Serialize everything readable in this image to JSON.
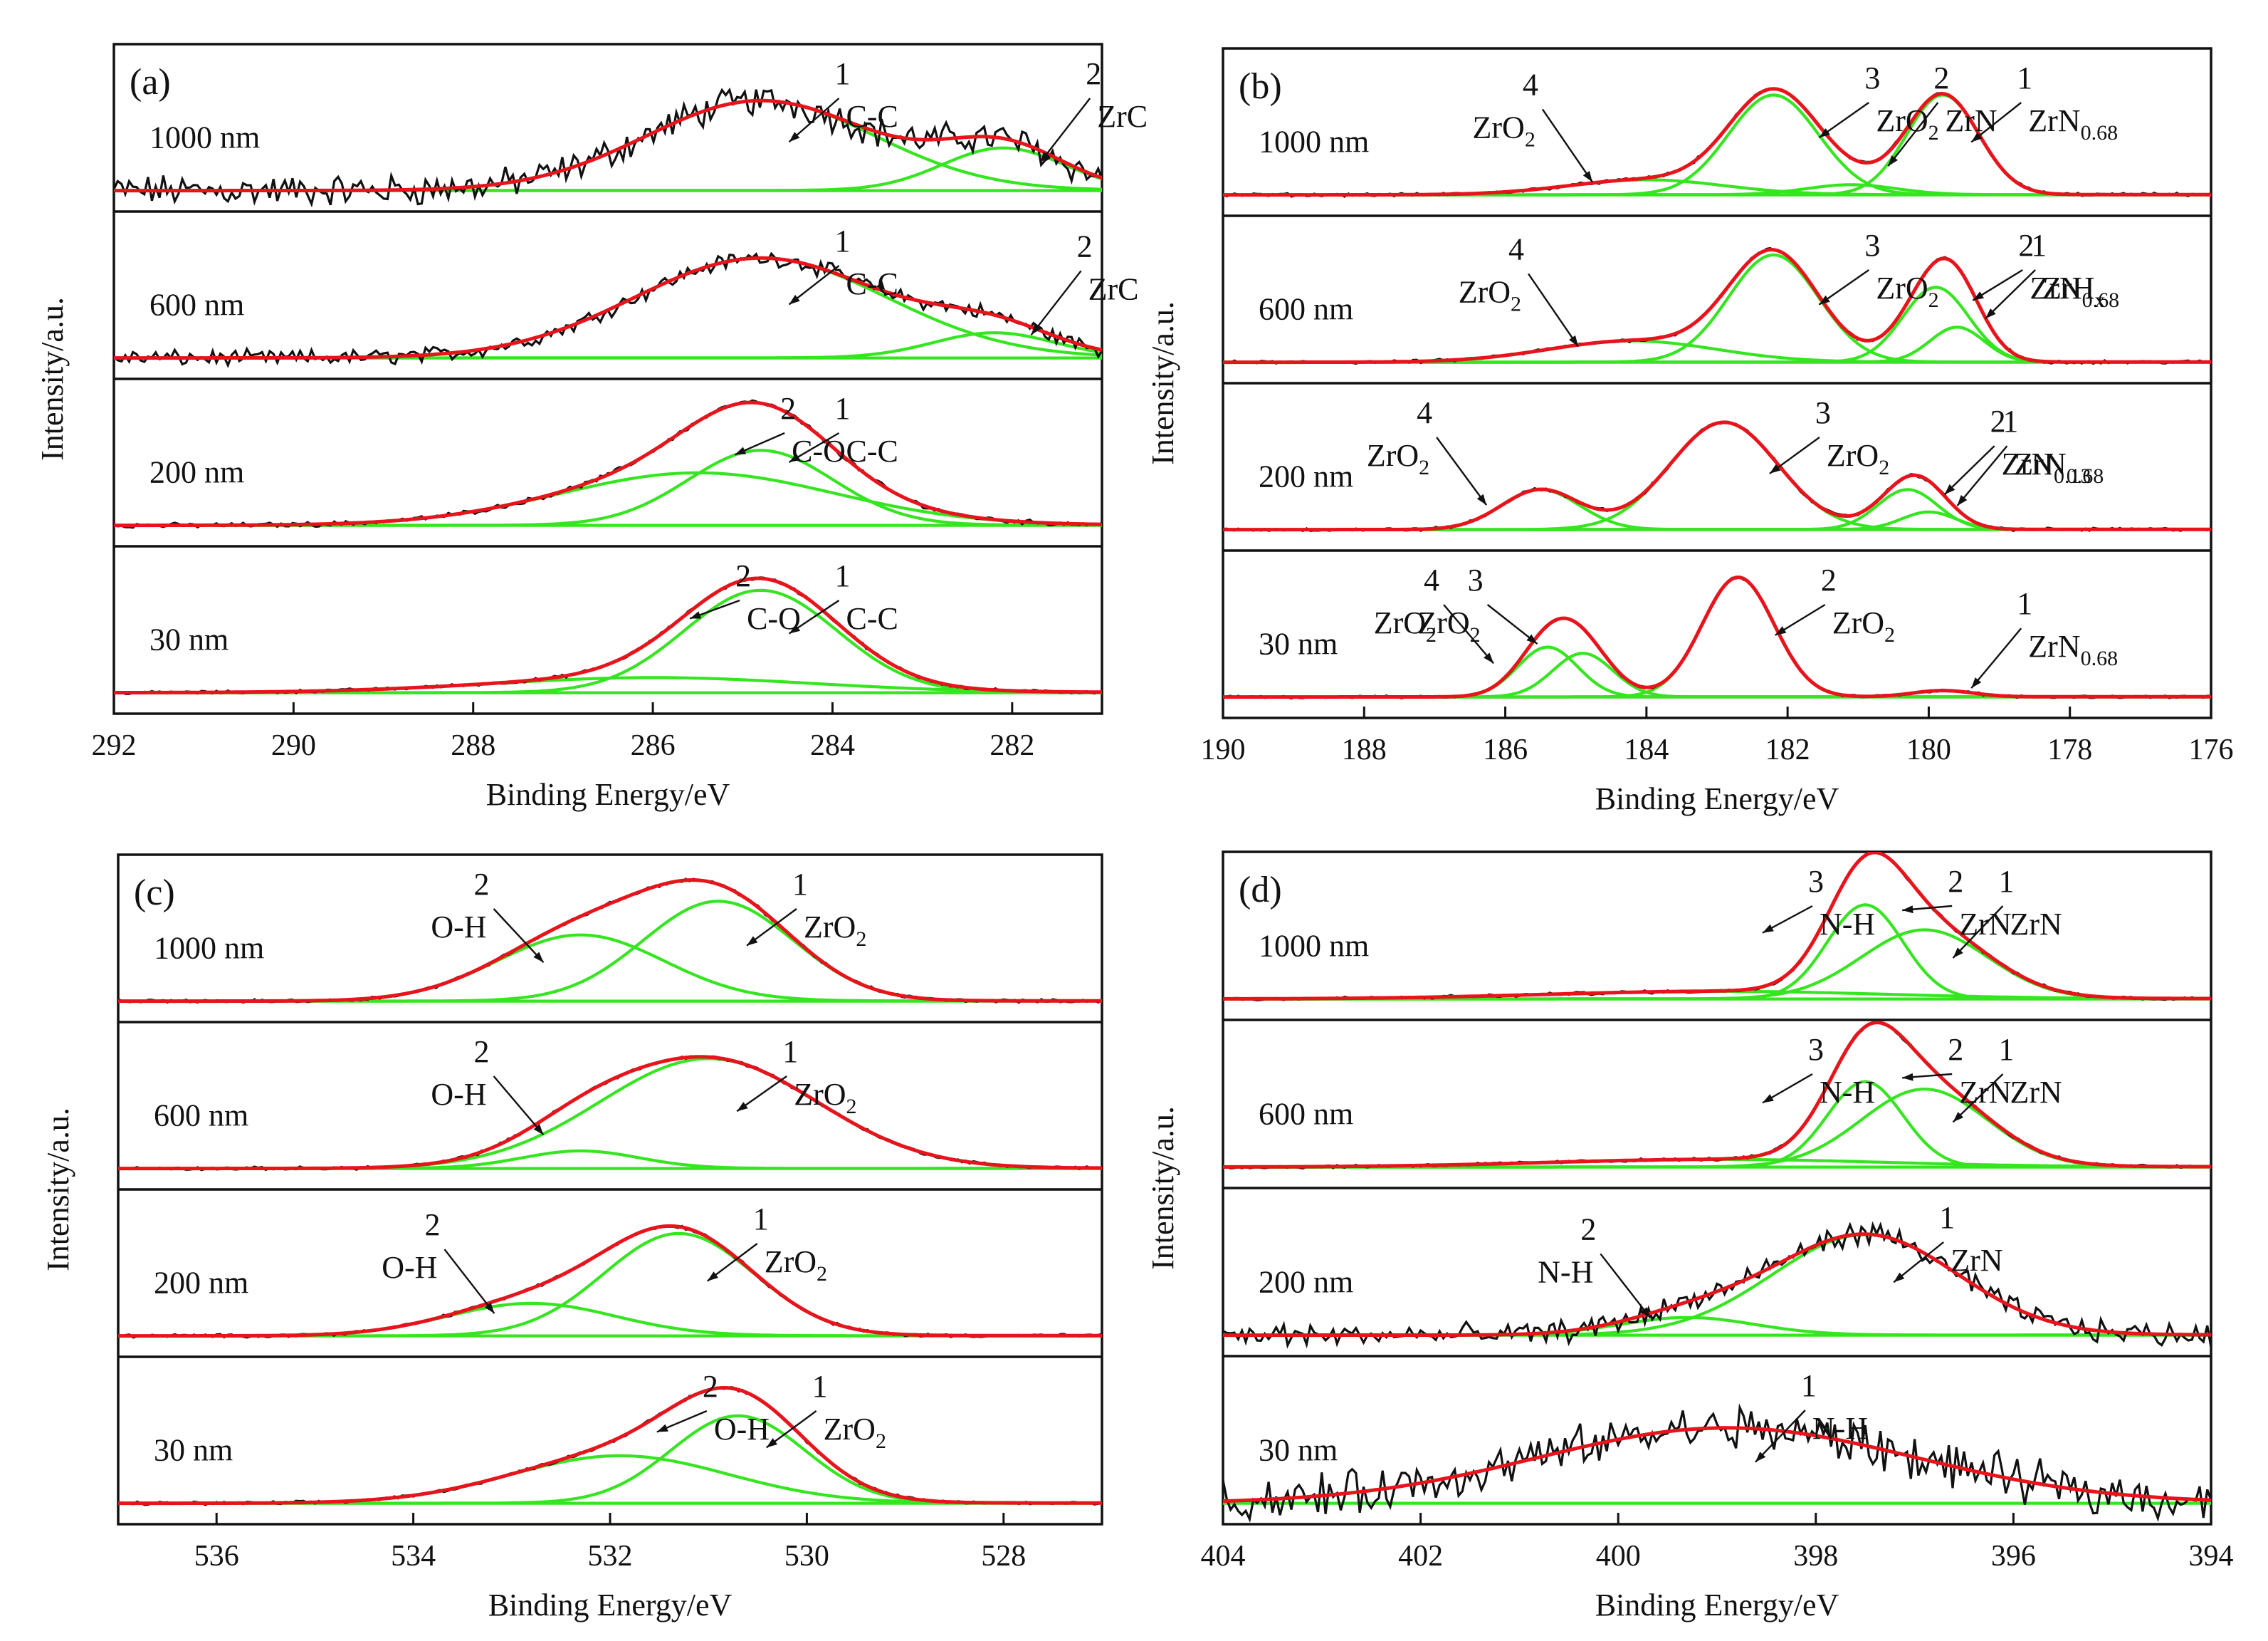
{
  "figure": {
    "ylabel": "Intensity/a.u.",
    "xlabel": "Binding Energy/eV"
  },
  "chart_data": [
    {
      "type": "line",
      "panel": "(a)",
      "x_range": [
        292,
        281
      ],
      "x_ticks": [
        "292",
        "290",
        "288",
        "286",
        "284",
        "282"
      ],
      "x_tick_values": [
        292,
        290,
        288,
        286,
        284,
        282
      ],
      "xlabel": "Binding Energy/eV",
      "ylabel": "Intensity/a.u.",
      "subplots": [
        {
          "thickness": "1000 nm",
          "noise": 0.1,
          "peaks": [
            {
              "index": "1",
              "name": "C-C",
              "center": 284.8,
              "amplitude": 0.72,
              "fwhm": 3.0
            },
            {
              "index": "2",
              "name": "ZrC",
              "center": 282.1,
              "amplitude": 0.34,
              "fwhm": 1.6
            }
          ]
        },
        {
          "thickness": "600 nm",
          "noise": 0.05,
          "peaks": [
            {
              "index": "1",
              "name": "C-C",
              "center": 284.8,
              "amplitude": 0.8,
              "fwhm": 3.3
            },
            {
              "index": "2",
              "name": "ZrC",
              "center": 282.2,
              "amplitude": 0.2,
              "fwhm": 1.6
            }
          ]
        },
        {
          "thickness": "200 nm",
          "noise": 0.015,
          "peaks": [
            {
              "index": "1",
              "name": "C-C",
              "center": 284.8,
              "amplitude": 0.6,
              "fwhm": 1.9
            },
            {
              "index": "2",
              "name": "C-O",
              "center": 285.5,
              "amplitude": 0.42,
              "fwhm": 3.6
            }
          ]
        },
        {
          "thickness": "30 nm",
          "noise": 0.01,
          "peaks": [
            {
              "index": "1",
              "name": "C-C",
              "center": 284.8,
              "amplitude": 0.82,
              "fwhm": 2.0
            },
            {
              "index": "2",
              "name": "C-O",
              "center": 286.0,
              "amplitude": 0.12,
              "fwhm": 4.2
            }
          ]
        }
      ]
    },
    {
      "type": "line",
      "panel": "(b)",
      "x_range": [
        190,
        176
      ],
      "x_ticks": [
        "190",
        "188",
        "186",
        "184",
        "182",
        "180",
        "178",
        "176"
      ],
      "x_tick_values": [
        190,
        188,
        186,
        184,
        182,
        180,
        178,
        176
      ],
      "xlabel": "Binding Energy/eV",
      "ylabel": "Intensity/a.u.",
      "subplots": [
        {
          "thickness": "1000 nm",
          "noise": 0.01,
          "peaks": [
            {
              "index": "1",
              "name": "ZrN",
              "sub": "0.68",
              "center": 179.8,
              "amplitude": 0.8,
              "fwhm": 1.2
            },
            {
              "index": "2",
              "name": "ZrN",
              "sub": "",
              "center": 181.1,
              "amplitude": 0.08,
              "fwhm": 1.5
            },
            {
              "index": "3",
              "name": "ZrO",
              "sub": "2",
              "center": 182.2,
              "amplitude": 0.8,
              "fwhm": 1.5
            },
            {
              "index": "4",
              "name": "ZrO",
              "sub": "2",
              "center": 184.0,
              "amplitude": 0.12,
              "fwhm": 2.6
            }
          ]
        },
        {
          "thickness": "600 nm",
          "noise": 0.01,
          "peaks": [
            {
              "index": "1",
              "name": "ZrH",
              "sub": "x",
              "center": 179.6,
              "amplitude": 0.28,
              "fwhm": 0.9
            },
            {
              "index": "2",
              "name": "ZrN",
              "sub": "0.68",
              "center": 179.9,
              "amplitude": 0.6,
              "fwhm": 1.1
            },
            {
              "index": "3",
              "name": "ZrO",
              "sub": "2",
              "center": 182.2,
              "amplitude": 0.86,
              "fwhm": 1.5
            },
            {
              "index": "4",
              "name": "ZrO",
              "sub": "2",
              "center": 184.2,
              "amplitude": 0.17,
              "fwhm": 2.8
            }
          ]
        },
        {
          "thickness": "200 nm",
          "noise": 0.01,
          "peaks": [
            {
              "index": "1",
              "name": "ZrN",
              "sub": "0.68",
              "center": 180.0,
              "amplitude": 0.14,
              "fwhm": 0.9
            },
            {
              "index": "2",
              "name": "ZrN",
              "sub": "0.13",
              "center": 180.3,
              "amplitude": 0.32,
              "fwhm": 1.0
            },
            {
              "index": "3",
              "name": "ZrO",
              "sub": "2",
              "center": 182.9,
              "amplitude": 0.86,
              "fwhm": 1.8
            },
            {
              "index": "4",
              "name": "ZrO",
              "sub": "2",
              "center": 185.5,
              "amplitude": 0.32,
              "fwhm": 1.3
            }
          ]
        },
        {
          "thickness": "30 nm",
          "noise": 0.008,
          "peaks": [
            {
              "index": "1",
              "name": "ZrN",
              "sub": "0.68",
              "center": 179.8,
              "amplitude": 0.05,
              "fwhm": 1.0
            },
            {
              "index": "2",
              "name": "ZrO",
              "sub": "2",
              "center": 182.7,
              "amplitude": 0.96,
              "fwhm": 1.2
            },
            {
              "index": "3",
              "name": "ZrO",
              "sub": "2",
              "center": 184.9,
              "amplitude": 0.35,
              "fwhm": 1.0
            },
            {
              "index": "4",
              "name": "ZrO",
              "sub": "2",
              "center": 185.4,
              "amplitude": 0.4,
              "fwhm": 1.0
            }
          ]
        }
      ]
    },
    {
      "type": "line",
      "panel": "(c)",
      "x_range": [
        537,
        527
      ],
      "x_ticks": [
        "536",
        "534",
        "532",
        "530",
        "528"
      ],
      "x_tick_values": [
        536,
        534,
        532,
        530,
        528
      ],
      "xlabel": "Binding Energy/eV",
      "ylabel": "Intensity/a.u.",
      "subplots": [
        {
          "thickness": "1000 nm",
          "noise": 0.01,
          "peaks": [
            {
              "index": "1",
              "name": "ZrO",
              "sub": "2",
              "center": 530.9,
              "amplitude": 0.8,
              "fwhm": 1.8
            },
            {
              "index": "2",
              "name": "O-H",
              "sub": "",
              "center": 532.3,
              "amplitude": 0.53,
              "fwhm": 2.0
            }
          ]
        },
        {
          "thickness": "600 nm",
          "noise": 0.01,
          "peaks": [
            {
              "index": "1",
              "name": "ZrO",
              "sub": "2",
              "center": 531.0,
              "amplitude": 0.88,
              "fwhm": 2.6
            },
            {
              "index": "2",
              "name": "O-H",
              "sub": "",
              "center": 532.3,
              "amplitude": 0.14,
              "fwhm": 1.4
            }
          ]
        },
        {
          "thickness": "200 nm",
          "noise": 0.01,
          "peaks": [
            {
              "index": "1",
              "name": "ZrO",
              "sub": "2",
              "center": 531.3,
              "amplitude": 0.82,
              "fwhm": 1.8
            },
            {
              "index": "2",
              "name": "O-H",
              "sub": "",
              "center": 532.8,
              "amplitude": 0.26,
              "fwhm": 2.0
            }
          ]
        },
        {
          "thickness": "30 nm",
          "noise": 0.01,
          "peaks": [
            {
              "index": "1",
              "name": "ZrO",
              "sub": "2",
              "center": 530.7,
              "amplitude": 0.7,
              "fwhm": 1.6
            },
            {
              "index": "2",
              "name": "O-H",
              "sub": "",
              "center": 531.9,
              "amplitude": 0.38,
              "fwhm": 2.6
            }
          ]
        }
      ]
    },
    {
      "type": "line",
      "panel": "(d)",
      "x_range": [
        404,
        394
      ],
      "x_ticks": [
        "404",
        "402",
        "400",
        "398",
        "396",
        "394"
      ],
      "x_tick_values": [
        404,
        402,
        400,
        398,
        396,
        394
      ],
      "xlabel": "Binding Energy/eV",
      "ylabel": "Intensity/a.u.",
      "subplots": [
        {
          "thickness": "1000 nm",
          "noise": 0.01,
          "peaks": [
            {
              "index": "1",
              "name": "ZrN",
              "sub": "",
              "center": 396.9,
              "amplitude": 0.55,
              "fwhm": 1.5
            },
            {
              "index": "2",
              "name": "ZrN",
              "sub": "",
              "center": 397.5,
              "amplitude": 0.75,
              "fwhm": 0.9
            },
            {
              "index": "3",
              "name": "N-H",
              "sub": "",
              "center": 399.0,
              "amplitude": 0.06,
              "fwhm": 4.0
            }
          ]
        },
        {
          "thickness": "600 nm",
          "noise": 0.01,
          "peaks": [
            {
              "index": "1",
              "name": "ZrN",
              "sub": "",
              "center": 396.9,
              "amplitude": 0.62,
              "fwhm": 1.5
            },
            {
              "index": "2",
              "name": "ZrN",
              "sub": "",
              "center": 397.5,
              "amplitude": 0.68,
              "fwhm": 0.9
            },
            {
              "index": "3",
              "name": "N-H",
              "sub": "",
              "center": 399.0,
              "amplitude": 0.06,
              "fwhm": 4.0
            }
          ]
        },
        {
          "thickness": "200 nm",
          "noise": 0.07,
          "peaks": [
            {
              "index": "1",
              "name": "ZrN",
              "sub": "",
              "center": 397.5,
              "amplitude": 0.8,
              "fwhm": 2.2
            },
            {
              "index": "2",
              "name": "N-H",
              "sub": "",
              "center": 399.3,
              "amplitude": 0.14,
              "fwhm": 1.6
            }
          ]
        },
        {
          "thickness": "30 nm",
          "noise": 0.14,
          "peaks": [
            {
              "index": "1",
              "name": "N-H",
              "sub": "",
              "center": 398.9,
              "amplitude": 0.6,
              "fwhm": 4.5
            }
          ]
        }
      ]
    }
  ]
}
